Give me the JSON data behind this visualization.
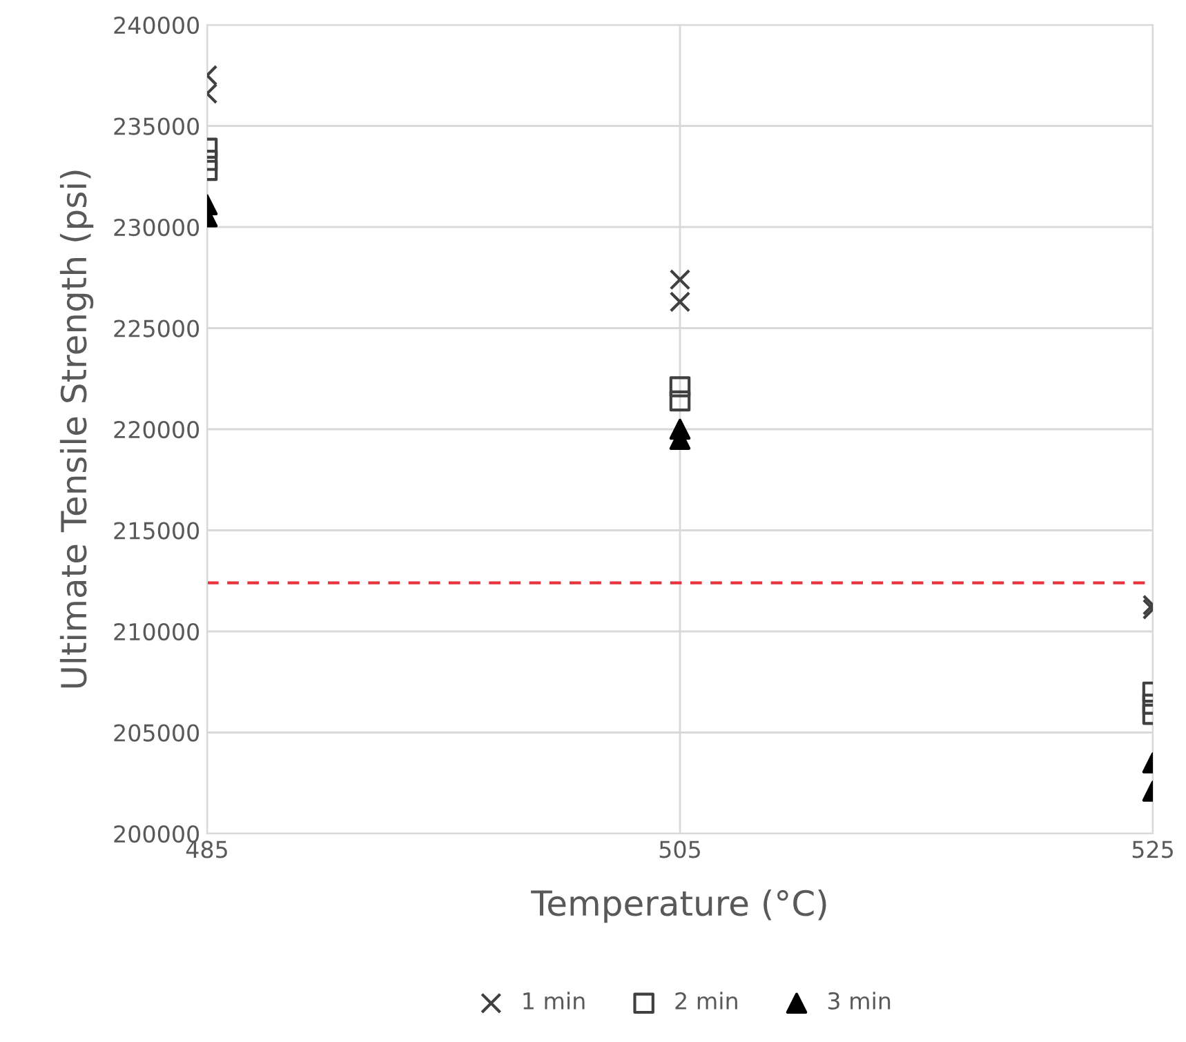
{
  "chart_data": {
    "type": "scatter",
    "xlabel": "Temperature (°C)",
    "ylabel": "Ultimate Tensile Strength (psi)",
    "xlim": [
      485,
      525
    ],
    "xticks": [
      485,
      505,
      525
    ],
    "ylim": [
      200000,
      240000
    ],
    "yticks": [
      200000,
      205000,
      210000,
      215000,
      220000,
      225000,
      230000,
      235000,
      240000
    ],
    "grid": true,
    "legend": "bottom",
    "series": [
      {
        "name": "1 min",
        "color": "#404040",
        "marker": "cross",
        "x": [
          485,
          485,
          505,
          505,
          525,
          525
        ],
        "values": [
          237500,
          236600,
          227400,
          226300,
          211300,
          211100
        ]
      },
      {
        "name": "2 min",
        "color": "#404040",
        "marker": "square",
        "x": [
          485,
          485,
          485,
          505,
          505,
          525,
          525,
          525
        ],
        "values": [
          233900,
          233300,
          232800,
          222100,
          221400,
          207000,
          206400,
          205900
        ]
      },
      {
        "name": "3 min",
        "color": "#000000",
        "marker": "triangle",
        "x": [
          485,
          485,
          505,
          505,
          525,
          525
        ],
        "values": [
          231100,
          230500,
          220000,
          219500,
          203500,
          202100
        ]
      }
    ],
    "ref_lines": [
      {
        "axis": "y",
        "value": 212400,
        "color": "#e8323c",
        "line_style": "dashed"
      }
    ]
  }
}
